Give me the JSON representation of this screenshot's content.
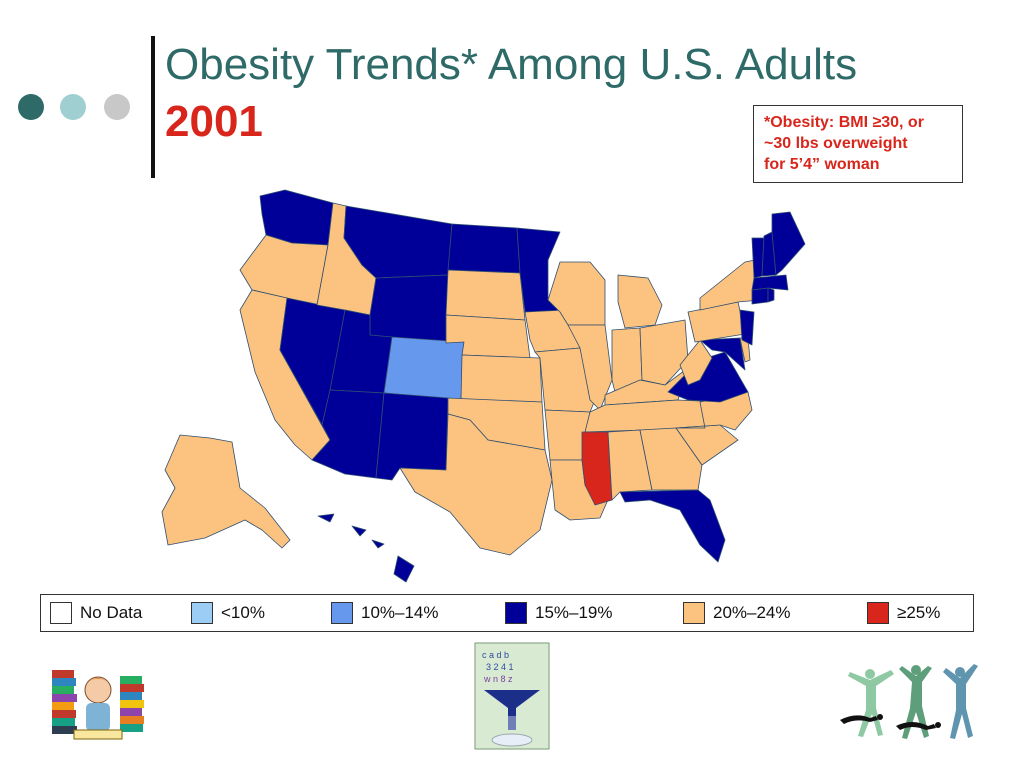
{
  "slide": {
    "title": "Obesity Trends* Among U.S. Adults",
    "year": "2001",
    "footnote_lines": [
      "*Obesity: BMI ≥30, or",
      "~30 lbs overweight",
      "for 5’4” woman"
    ]
  },
  "colors": {
    "no_data": "#ffffff",
    "lt10": "#9ccdf5",
    "p10_14": "#6699ee",
    "p15_19": "#000099",
    "p20_24": "#fcc27f",
    "ge25": "#d9261c",
    "title": "#2e6a68",
    "accent_red": "#d9261c"
  },
  "legend": [
    {
      "label": "No Data",
      "color": "#ffffff"
    },
    {
      "label": "<10%",
      "color": "#9ccdf5"
    },
    {
      "label": "10%–14%",
      "color": "#6699ee"
    },
    {
      "label": "15%–19%",
      "color": "#000099"
    },
    {
      "label": "20%–24%",
      "color": "#fcc27f"
    },
    {
      "label": "≥25%",
      "color": "#d9261c"
    }
  ],
  "states": {
    "p15_19": [
      "WA",
      "MT",
      "WY",
      "ND",
      "MN",
      "NV",
      "UT",
      "AZ",
      "NM",
      "VA",
      "MD",
      "NJ",
      "CT",
      "RI",
      "MA",
      "VT",
      "NH",
      "ME",
      "FL",
      "HI"
    ],
    "p10_14": [
      "CO"
    ],
    "ge25": [
      "MS"
    ],
    "p20_24": [
      "OR",
      "ID",
      "CA",
      "SD",
      "NE",
      "KS",
      "OK",
      "TX",
      "IA",
      "MO",
      "AR",
      "LA",
      "WI",
      "IL",
      "MI",
      "IN",
      "OH",
      "KY",
      "TN",
      "AL",
      "GA",
      "SC",
      "NC",
      "WV",
      "PA",
      "NY",
      "DE",
      "AK"
    ]
  },
  "decor": {
    "dot_colors": [
      "#2e6a68",
      "#9fcfd0",
      "#c8c8c8"
    ],
    "illustrations": [
      "reading-student-icon",
      "sorting-funnel-icon",
      "dancers-icon"
    ]
  }
}
